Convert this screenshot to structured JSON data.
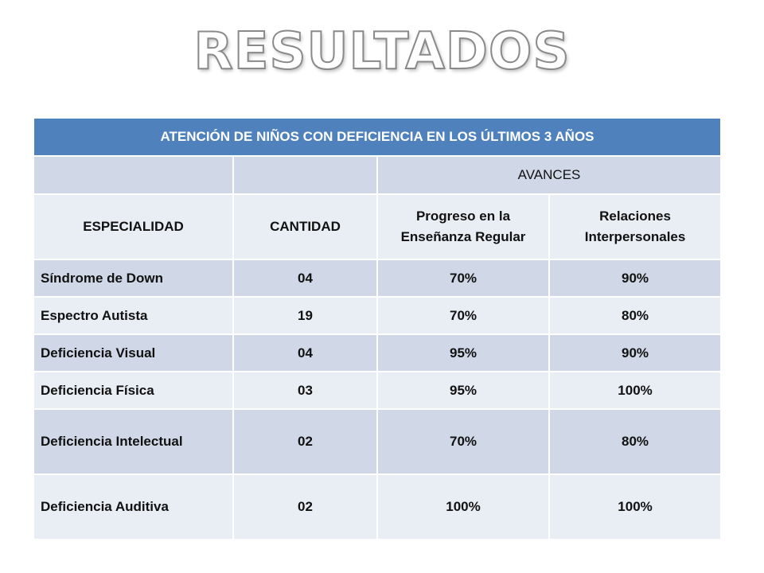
{
  "title": "RESULTADOS",
  "table": {
    "caption": "ATENCIÓN DE NIÑOS CON DEFICIENCIA EN LOS ÚLTIMOS 3 AÑOS",
    "group_header": "AVANCES",
    "columns": [
      "ESPECIALIDAD",
      "CANTIDAD",
      "Progreso en la Enseñanza Regular",
      "Relaciones Interpersonales"
    ],
    "rows": [
      [
        "Síndrome de Down",
        "04",
        "70%",
        "90%"
      ],
      [
        "Espectro Autista",
        "19",
        "70%",
        "80%"
      ],
      [
        "Deficiencia Visual",
        "04",
        "95%",
        "90%"
      ],
      [
        "Deficiencia Física",
        "03",
        "95%",
        "100%"
      ],
      [
        "Deficiencia Intelectual",
        "02",
        "70%",
        "80%"
      ],
      [
        "Deficiencia Auditiva",
        "02",
        "100%",
        "100%"
      ]
    ]
  },
  "colors": {
    "header": "#4f81bd",
    "band_dark": "#d0d8e8",
    "band_light": "#e9edf4"
  }
}
